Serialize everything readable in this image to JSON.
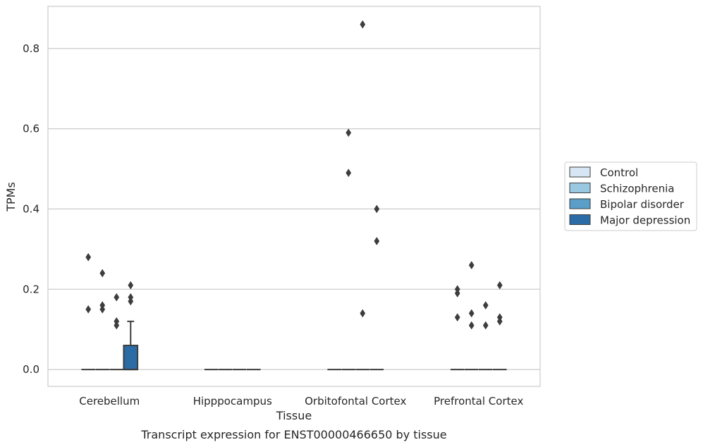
{
  "chart_data": {
    "type": "box",
    "title": "",
    "caption": "Transcript expression for ENST00000466650 by tissue",
    "xlabel": "Tissue",
    "ylabel": "TPMs",
    "ylim": [
      -0.042,
      0.905
    ],
    "yticks": [
      "0.0",
      "0.2",
      "0.4",
      "0.6",
      "0.8"
    ],
    "ytick_values": [
      0.0,
      0.2,
      0.4,
      0.6,
      0.8
    ],
    "grid": "horizontal",
    "legend_position": "right",
    "categories": [
      "Cerebellum",
      "Hipppocampus",
      "Orbitofontal Cortex",
      "Prefrontal Cortex"
    ],
    "series": [
      {
        "name": "Control",
        "color": "#d6e6f4",
        "boxes": [
          {
            "q1": 0,
            "median": 0,
            "q3": 0,
            "whisker_low": 0,
            "whisker_high": 0,
            "outliers": [
              0.28,
              0.15
            ]
          },
          {
            "q1": 0,
            "median": 0,
            "q3": 0,
            "whisker_low": 0,
            "whisker_high": 0,
            "outliers": []
          },
          {
            "q1": 0,
            "median": 0,
            "q3": 0,
            "whisker_low": 0,
            "whisker_high": 0,
            "outliers": []
          },
          {
            "q1": 0,
            "median": 0,
            "q3": 0,
            "whisker_low": 0,
            "whisker_high": 0,
            "outliers": [
              0.2,
              0.19,
              0.13
            ]
          }
        ]
      },
      {
        "name": "Schizophrenia",
        "color": "#9ac8e0",
        "boxes": [
          {
            "q1": 0,
            "median": 0,
            "q3": 0,
            "whisker_low": 0,
            "whisker_high": 0,
            "outliers": [
              0.24,
              0.16,
              0.15
            ]
          },
          {
            "q1": 0,
            "median": 0,
            "q3": 0,
            "whisker_low": 0,
            "whisker_high": 0,
            "outliers": []
          },
          {
            "q1": 0,
            "median": 0,
            "q3": 0,
            "whisker_low": 0,
            "whisker_high": 0,
            "outliers": [
              0.59,
              0.49
            ]
          },
          {
            "q1": 0,
            "median": 0,
            "q3": 0,
            "whisker_low": 0,
            "whisker_high": 0,
            "outliers": [
              0.26,
              0.14,
              0.11
            ]
          }
        ]
      },
      {
        "name": "Bipolar disorder",
        "color": "#5a9ec9",
        "boxes": [
          {
            "q1": 0,
            "median": 0,
            "q3": 0,
            "whisker_low": 0,
            "whisker_high": 0,
            "outliers": [
              0.18,
              0.12,
              0.11
            ]
          },
          {
            "q1": 0,
            "median": 0,
            "q3": 0,
            "whisker_low": 0,
            "whisker_high": 0,
            "outliers": []
          },
          {
            "q1": 0,
            "median": 0,
            "q3": 0,
            "whisker_low": 0,
            "whisker_high": 0,
            "outliers": [
              0.86,
              0.14
            ]
          },
          {
            "q1": 0,
            "median": 0,
            "q3": 0,
            "whisker_low": 0,
            "whisker_high": 0,
            "outliers": [
              0.16,
              0.11
            ]
          }
        ]
      },
      {
        "name": "Major depression",
        "color": "#2b6ca7",
        "boxes": [
          {
            "q1": 0,
            "median": 0,
            "q3": 0.06,
            "whisker_low": 0,
            "whisker_high": 0.12,
            "outliers": [
              0.21,
              0.18,
              0.17
            ]
          },
          {
            "q1": 0,
            "median": 0,
            "q3": 0,
            "whisker_low": 0,
            "whisker_high": 0,
            "outliers": []
          },
          {
            "q1": 0,
            "median": 0,
            "q3": 0,
            "whisker_low": 0,
            "whisker_high": 0,
            "outliers": [
              0.4,
              0.32
            ]
          },
          {
            "q1": 0,
            "median": 0,
            "q3": 0,
            "whisker_low": 0,
            "whisker_high": 0,
            "outliers": [
              0.21,
              0.13,
              0.12
            ]
          }
        ]
      }
    ]
  }
}
